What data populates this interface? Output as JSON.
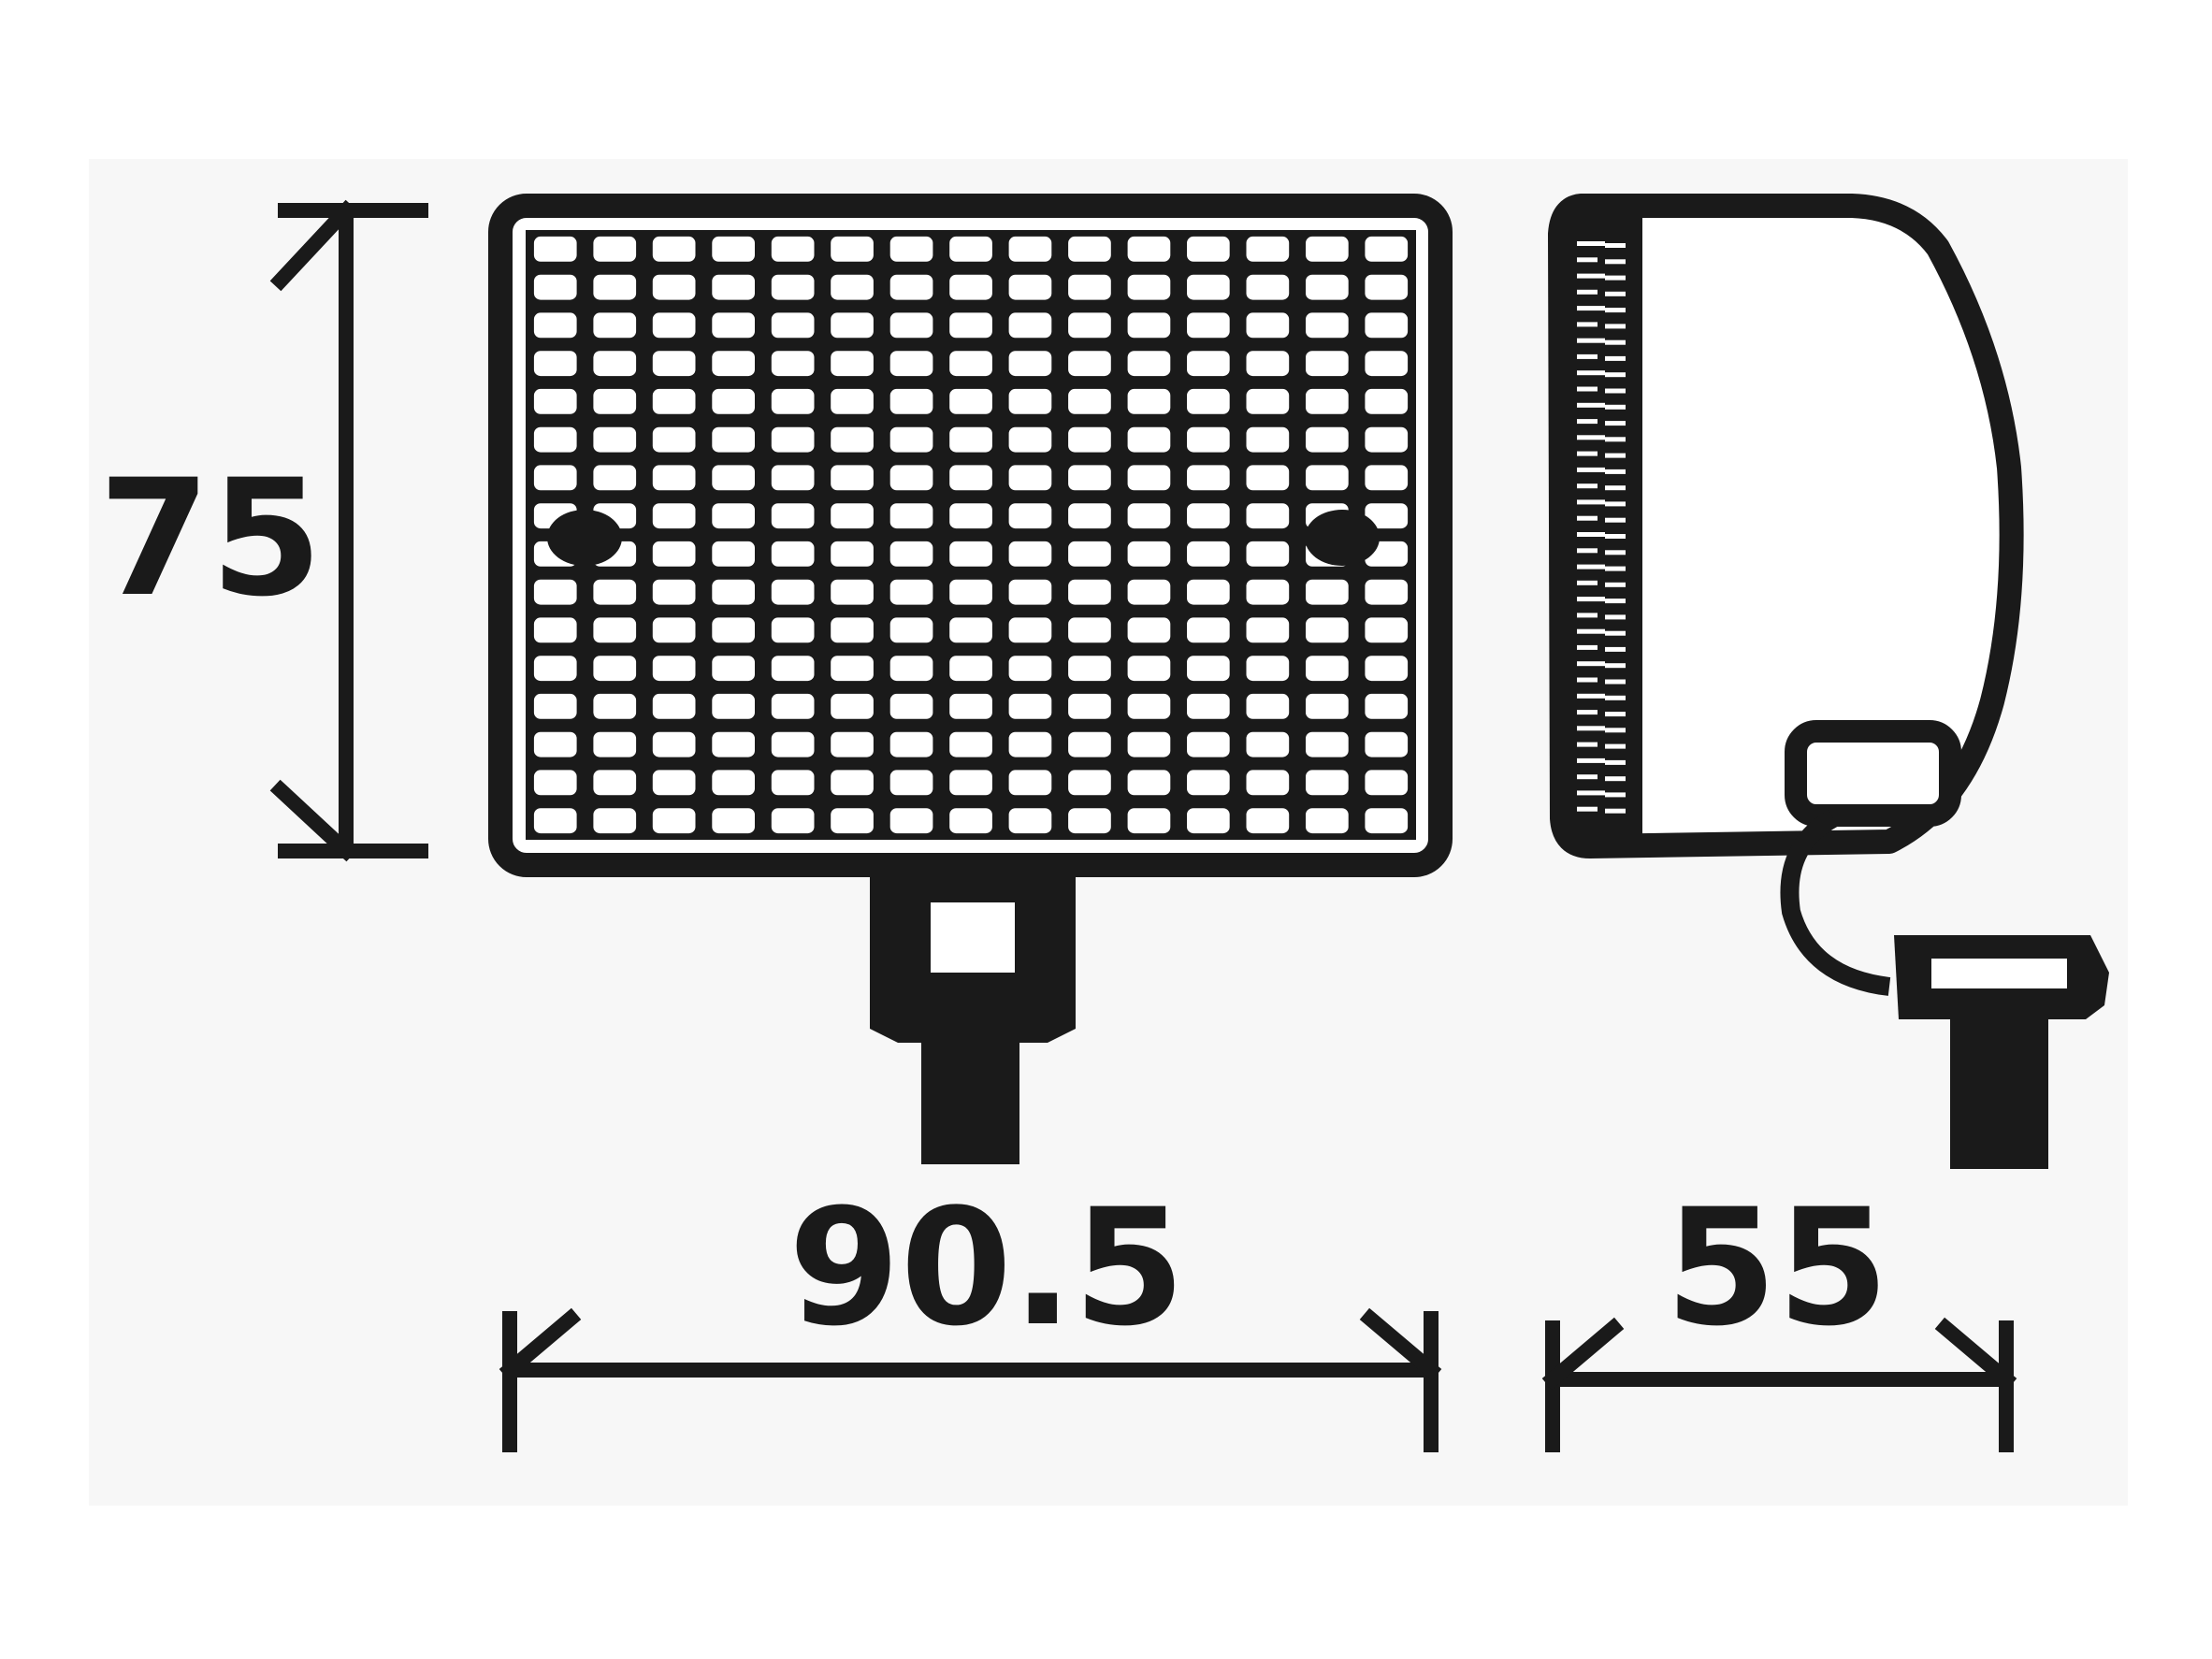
{
  "drawing": {
    "dimensions": {
      "height": "75",
      "width": "90.5",
      "depth": "55"
    },
    "lens_grid": {
      "rows": 16,
      "cols": 15
    },
    "colors": {
      "ink": "#1a1a1a",
      "paper": "#ffffff",
      "background_tint": "#f7f7f7"
    }
  }
}
